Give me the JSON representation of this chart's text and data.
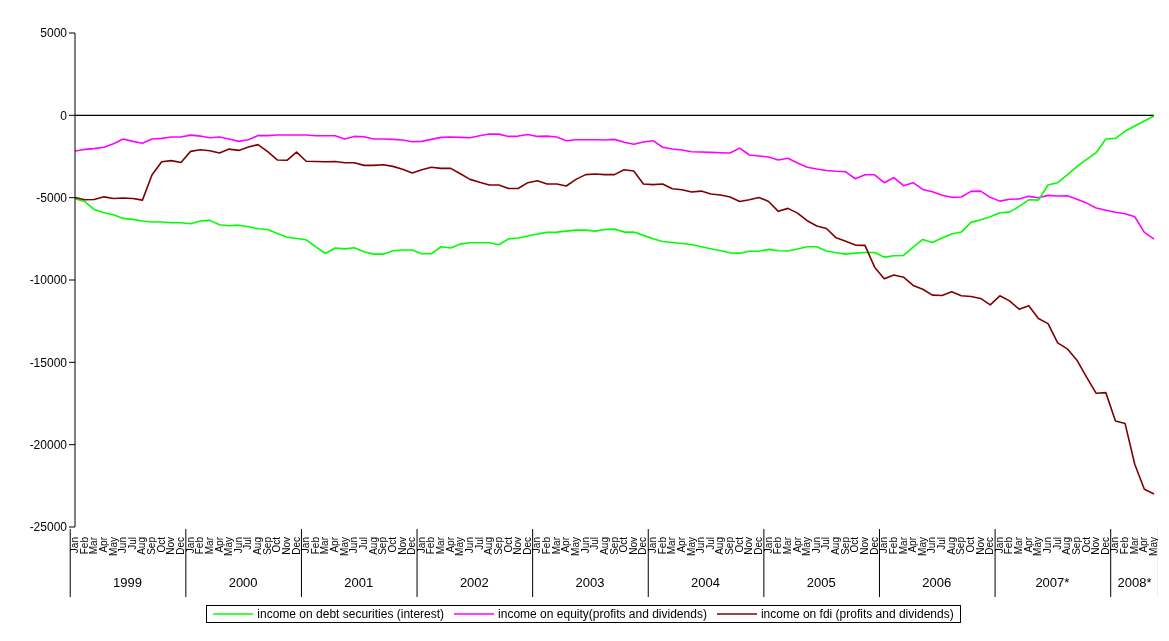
{
  "chart_data": {
    "type": "line",
    "categories": [
      "Jan",
      "Feb",
      "Mar",
      "Apr",
      "May",
      "Jun",
      "Jul",
      "Aug",
      "Sep",
      "Oct",
      "Nov",
      "Dec",
      "Jan",
      "Feb",
      "Mar",
      "Apr",
      "May",
      "Jun",
      "Jul",
      "Aug",
      "Sep",
      "Oct",
      "Nov",
      "Dec",
      "Jan",
      "Feb",
      "Mar",
      "Apr",
      "May",
      "Jun",
      "Jul",
      "Aug",
      "Sep",
      "Oct",
      "Nov",
      "Dec",
      "Jan",
      "Feb",
      "Mar",
      "Apr",
      "May",
      "Jun",
      "Jul",
      "Aug",
      "Sep",
      "Oct",
      "Nov",
      "Dec",
      "Jan",
      "Feb",
      "Mar",
      "Apr",
      "May",
      "Jun",
      "Jul",
      "Aug",
      "Sep",
      "Oct",
      "Nov",
      "Dec",
      "Jan",
      "Feb",
      "Mar",
      "Apr",
      "May",
      "Jun",
      "Jul",
      "Aug",
      "Sep",
      "Oct",
      "Nov",
      "Dec",
      "Jan",
      "Feb",
      "Mar",
      "Apr",
      "May",
      "Jun",
      "Jul",
      "Aug",
      "Sep",
      "Oct",
      "Nov",
      "Dec",
      "Jan",
      "Feb",
      "Mar",
      "Apr",
      "May",
      "Jun",
      "Jul",
      "Aug",
      "Sep",
      "Oct",
      "Nov",
      "Dec",
      "Jan",
      "Feb",
      "Mar",
      "Apr",
      "May",
      "Jun",
      "Jul",
      "Aug",
      "Sep",
      "Oct",
      "Nov",
      "Dec",
      "Jan",
      "Feb",
      "Mar",
      "Apr",
      "May"
    ],
    "series": [
      {
        "name": "income on equity(profits and dividends)",
        "color": "#ff00ff",
        "values": [
          -2170,
          -2070,
          -2020,
          -1940,
          -1720,
          -1440,
          -1580,
          -1700,
          -1440,
          -1400,
          -1320,
          -1320,
          -1200,
          -1260,
          -1360,
          -1320,
          -1440,
          -1580,
          -1480,
          -1230,
          -1230,
          -1190,
          -1190,
          -1190,
          -1190,
          -1240,
          -1240,
          -1240,
          -1440,
          -1280,
          -1300,
          -1440,
          -1440,
          -1460,
          -1500,
          -1600,
          -1580,
          -1460,
          -1340,
          -1320,
          -1340,
          -1360,
          -1240,
          -1130,
          -1140,
          -1280,
          -1260,
          -1160,
          -1280,
          -1260,
          -1320,
          -1540,
          -1480,
          -1480,
          -1480,
          -1500,
          -1460,
          -1640,
          -1760,
          -1620,
          -1540,
          -1940,
          -2040,
          -2110,
          -2210,
          -2230,
          -2250,
          -2270,
          -2290,
          -1990,
          -2410,
          -2470,
          -2530,
          -2710,
          -2610,
          -2900,
          -3150,
          -3260,
          -3350,
          -3400,
          -3430,
          -3850,
          -3610,
          -3610,
          -4090,
          -3780,
          -4270,
          -4090,
          -4500,
          -4640,
          -4850,
          -4980,
          -4960,
          -4620,
          -4600,
          -4980,
          -5210,
          -5100,
          -5080,
          -4920,
          -5010,
          -4860,
          -4900,
          -4880,
          -5100,
          -5330,
          -5630,
          -5760,
          -5890,
          -5980,
          -6160,
          -7110,
          -7520
        ]
      },
      {
        "name": "income on debt securities (interest)",
        "color": "#00ff00",
        "values": [
          -5070,
          -5230,
          -5720,
          -5920,
          -6040,
          -6260,
          -6320,
          -6420,
          -6480,
          -6480,
          -6520,
          -6520,
          -6580,
          -6420,
          -6380,
          -6640,
          -6710,
          -6670,
          -6770,
          -6890,
          -6930,
          -7170,
          -7400,
          -7480,
          -7560,
          -7990,
          -8390,
          -8060,
          -8110,
          -8040,
          -8290,
          -8430,
          -8430,
          -8220,
          -8180,
          -8180,
          -8410,
          -8400,
          -7980,
          -8060,
          -7820,
          -7740,
          -7740,
          -7740,
          -7860,
          -7500,
          -7450,
          -7330,
          -7210,
          -7110,
          -7090,
          -7030,
          -6970,
          -6970,
          -7030,
          -6930,
          -6910,
          -7090,
          -7090,
          -7290,
          -7500,
          -7660,
          -7720,
          -7780,
          -7840,
          -7980,
          -8100,
          -8220,
          -8350,
          -8370,
          -8250,
          -8250,
          -8140,
          -8220,
          -8240,
          -8120,
          -7980,
          -7980,
          -8240,
          -8350,
          -8430,
          -8370,
          -8330,
          -8330,
          -8610,
          -8530,
          -8510,
          -8000,
          -7540,
          -7720,
          -7450,
          -7210,
          -7090,
          -6500,
          -6340,
          -6160,
          -5920,
          -5880,
          -5530,
          -5130,
          -5150,
          -4230,
          -4090,
          -3610,
          -3120,
          -2670,
          -2270,
          -1440,
          -1400,
          -970,
          -650,
          -340,
          -40
        ]
      },
      {
        "name": "income on fdi (profits and dividends)",
        "color": "#800000",
        "values": [
          -4990,
          -5130,
          -5110,
          -4950,
          -5050,
          -5020,
          -5050,
          -5150,
          -3610,
          -2820,
          -2750,
          -2860,
          -2190,
          -2090,
          -2150,
          -2290,
          -2050,
          -2130,
          -1920,
          -1780,
          -2210,
          -2710,
          -2730,
          -2230,
          -2790,
          -2800,
          -2820,
          -2800,
          -2880,
          -2880,
          -3040,
          -3040,
          -3000,
          -3100,
          -3280,
          -3500,
          -3300,
          -3150,
          -3220,
          -3220,
          -3550,
          -3890,
          -4070,
          -4230,
          -4230,
          -4440,
          -4440,
          -4090,
          -3970,
          -4170,
          -4170,
          -4290,
          -3890,
          -3600,
          -3560,
          -3600,
          -3600,
          -3300,
          -3380,
          -4170,
          -4210,
          -4170,
          -4460,
          -4520,
          -4660,
          -4600,
          -4780,
          -4840,
          -4960,
          -5230,
          -5130,
          -4990,
          -5230,
          -5830,
          -5650,
          -5940,
          -6400,
          -6720,
          -6870,
          -7440,
          -7640,
          -7880,
          -7900,
          -9220,
          -9930,
          -9700,
          -9830,
          -10330,
          -10560,
          -10920,
          -10940,
          -10720,
          -10960,
          -11000,
          -11120,
          -11510,
          -10960,
          -11270,
          -11770,
          -11570,
          -12340,
          -12650,
          -13820,
          -14180,
          -14870,
          -15900,
          -16880,
          -16840,
          -18560,
          -18720,
          -21190,
          -22710,
          -23000
        ]
      }
    ],
    "ylim": [
      -25000,
      5000
    ],
    "yticks": [
      -25000,
      -20000,
      -15000,
      -10000,
      -5000,
      0,
      5000
    ],
    "annotations": [
      "1999",
      "2000",
      "2001",
      "2002",
      "2003",
      "2004",
      "2005",
      "2006",
      "2007*",
      "2008*"
    ],
    "ref_lines": [
      {
        "axis": "y",
        "value": 0,
        "color": "#000000"
      }
    ],
    "grid": false,
    "legend": "bottom",
    "marker": "none",
    "line_style": "solid"
  }
}
